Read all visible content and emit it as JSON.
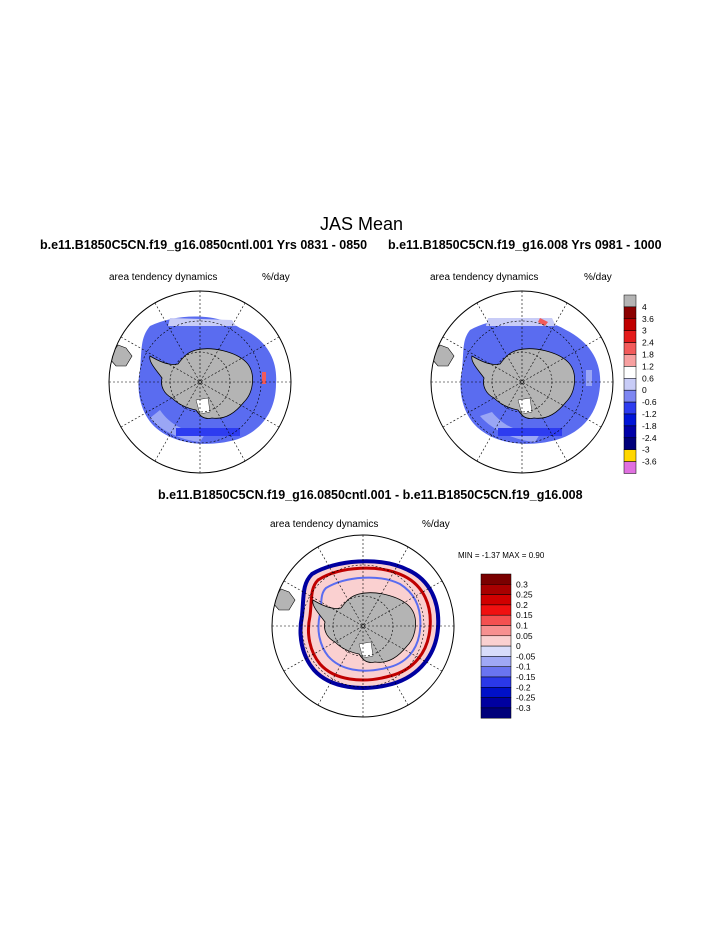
{
  "page": {
    "title": "JAS Mean"
  },
  "colors": {
    "ocean": "#ffffff",
    "land": "#b4b4b4",
    "ice_negative": "#5a6cf0",
    "ice_light": "#9aa6f5",
    "missing": "#b4b4b4"
  },
  "chart_data": [
    {
      "type": "heatmap",
      "projection": "south-polar-stereographic",
      "title": "b.e11.B1850C5CN.f19_g16.0850cntl.001  Yrs 0831 - 0850",
      "left_label": "area tendency dynamics",
      "right_label": "%/day"
    },
    {
      "type": "heatmap",
      "projection": "south-polar-stereographic",
      "title": "b.e11.B1850C5CN.f19_g16.008  Yrs 0981 - 1000",
      "left_label": "area tendency dynamics",
      "right_label": "%/day",
      "colorbar": {
        "labels": [
          "4",
          "3.6",
          "3",
          "2.4",
          "1.8",
          "1.2",
          "0.6",
          "0",
          "-0.6",
          "-1.2",
          "-1.8",
          "-2.4",
          "-3",
          "-3.6"
        ],
        "colors": [
          "#b4b4b4",
          "#8b0000",
          "#c00000",
          "#e41a1a",
          "#f25a5a",
          "#f7a0a0",
          "#ffffff",
          "#c8ccf7",
          "#7d86f2",
          "#2d3cf0",
          "#0014d8",
          "#0000a8",
          "#00007a",
          "#ffd700",
          "#e070e0"
        ]
      }
    },
    {
      "type": "heatmap",
      "projection": "south-polar-stereographic",
      "title": "b.e11.B1850C5CN.f19_g16.0850cntl.001 - b.e11.B1850C5CN.f19_g16.008",
      "left_label": "area tendency dynamics",
      "right_label": "%/day",
      "min_max_text": "MIN =  -1.37 MAX =   0.90",
      "colorbar": {
        "labels": [
          "0.3",
          "0.25",
          "0.2",
          "0.15",
          "0.1",
          "0.05",
          "0",
          "-0.05",
          "-0.1",
          "-0.15",
          "-0.2",
          "-0.25",
          "-0.3"
        ],
        "colors": [
          "#7a0000",
          "#a80000",
          "#d00000",
          "#f01010",
          "#f45050",
          "#f79090",
          "#fad0d0",
          "#d8dcfa",
          "#a0a8f5",
          "#6a74f0",
          "#2a38e8",
          "#0010c8",
          "#0000a0",
          "#00007a"
        ]
      }
    }
  ]
}
